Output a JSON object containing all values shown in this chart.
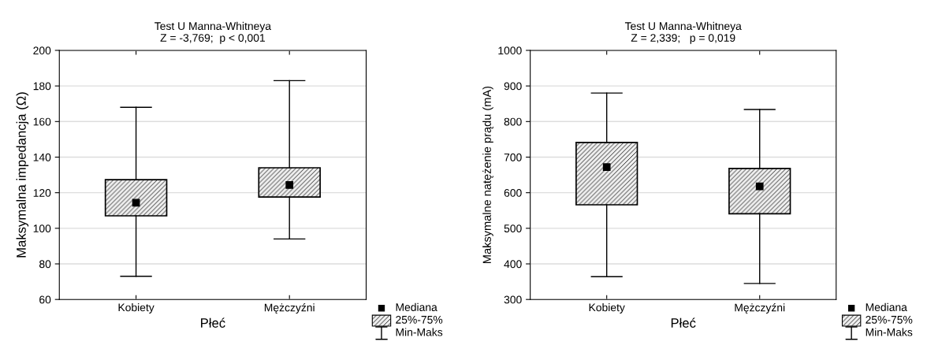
{
  "chart_data": [
    {
      "type": "box",
      "title": "Test U Manna-Whitneya\nZ = -3,769;  p < 0,001",
      "xlabel": "Płeć",
      "ylabel": "Maksymalna impedancja (Ω)",
      "categories": [
        "Kobiety",
        "Mężczyźni"
      ],
      "boxes": [
        {
          "low": 73,
          "q1": 107,
          "median": 114.4,
          "q3": 127.3,
          "high": 168
        },
        {
          "low": 94,
          "q1": 117.6,
          "median": 124.3,
          "q3": 134,
          "high": 183
        }
      ],
      "ylim": [
        60,
        200
      ],
      "yticks": [
        60,
        80,
        100,
        120,
        140,
        160,
        180,
        200
      ],
      "grid": "y",
      "marker": "square",
      "annotations": [
        "Mediana",
        "25%-75%",
        "Min-Maks"
      ]
    },
    {
      "type": "box",
      "title": "Test U Manna-Whitneya\nZ = 2,339;   p = 0,019",
      "xlabel": "Płeć",
      "ylabel": "Maksymalne natężenie prądu (mA)",
      "categories": [
        "Kobiety",
        "Mężczyźni"
      ],
      "boxes": [
        {
          "low": 364,
          "q1": 566,
          "median": 672,
          "q3": 741,
          "high": 880
        },
        {
          "low": 345,
          "q1": 541,
          "median": 618,
          "q3": 668,
          "high": 834
        }
      ],
      "ylim": [
        300,
        1000
      ],
      "yticks": [
        300,
        400,
        500,
        600,
        700,
        800,
        900,
        1000
      ],
      "grid": "y",
      "marker": "square",
      "annotations": [
        "Mediana",
        "25%-75%",
        "Min-Maks"
      ]
    }
  ]
}
